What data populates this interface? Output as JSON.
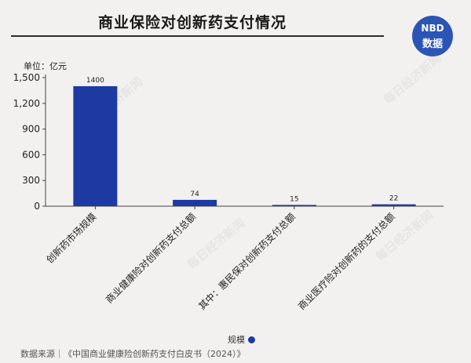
{
  "header": {
    "title": "商业保险对创新药支付情况"
  },
  "logo": {
    "line1": "NBD",
    "line2": "数据"
  },
  "watermark": "每日经济新闻",
  "footer": {
    "source": "数据来源｜《中国商业健康险创新药支付白皮书（2024）》"
  },
  "legend": {
    "label": "规模"
  },
  "colors": {
    "bar": "#1d3aa3",
    "background": "#f3f1ef"
  },
  "chart_data": {
    "type": "bar",
    "unit_label": "单位：亿元",
    "categories": [
      "创新药市场规模",
      "商业健康险对创新药支付总额",
      "其中：惠民保对创新药支付总额",
      "商业医疗险对创新药的支付总额"
    ],
    "series": [
      {
        "name": "规模",
        "values": [
          1400,
          74,
          15,
          22
        ]
      }
    ],
    "value_labels": [
      "1400",
      "74",
      "15",
      "22"
    ],
    "ylim": [
      0,
      1500
    ],
    "yticks": [
      0,
      300,
      600,
      900,
      1200,
      1500
    ],
    "ytick_labels": [
      "0",
      "300",
      "600",
      "900",
      "1,200",
      "1,500"
    ],
    "grid": false,
    "legend_position": "bottom-center"
  }
}
